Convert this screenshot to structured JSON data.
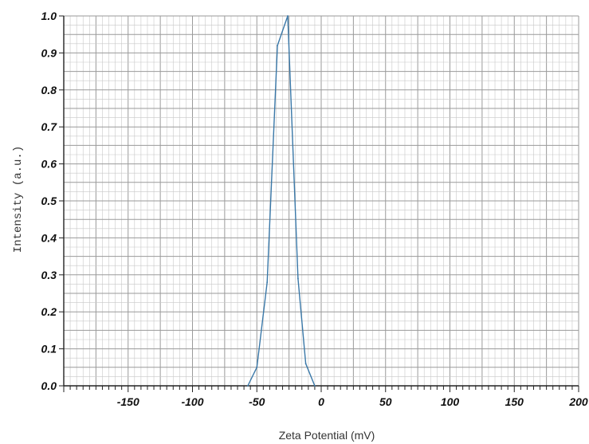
{
  "chart_data": {
    "type": "line",
    "title": "",
    "xlabel": "Zeta Potential (mV)",
    "ylabel": "Intensity (a.u.)",
    "xlim": [
      -200,
      200
    ],
    "ylim": [
      0,
      1.0
    ],
    "grid": true,
    "legend": "none",
    "x_ticks": [
      {
        "value": -150,
        "label": "-150"
      },
      {
        "value": -100,
        "label": "-100"
      },
      {
        "value": -50,
        "label": "-50"
      },
      {
        "value": 0,
        "label": "0"
      },
      {
        "value": 50,
        "label": "50"
      },
      {
        "value": 100,
        "label": "100"
      },
      {
        "value": 150,
        "label": "150"
      },
      {
        "value": 200,
        "label": "200"
      }
    ],
    "y_ticks": [
      {
        "value": 0.0,
        "label": "0.0"
      },
      {
        "value": 0.1,
        "label": "0.1"
      },
      {
        "value": 0.2,
        "label": "0.2"
      },
      {
        "value": 0.3,
        "label": "0.3"
      },
      {
        "value": 0.4,
        "label": "0.4"
      },
      {
        "value": 0.5,
        "label": "0.5"
      },
      {
        "value": 0.6,
        "label": "0.6"
      },
      {
        "value": 0.7,
        "label": "0.7"
      },
      {
        "value": 0.8,
        "label": "0.8"
      },
      {
        "value": 0.9,
        "label": "0.9"
      },
      {
        "value": 1.0,
        "label": "1.0"
      }
    ],
    "series": [
      {
        "color": "#3a78a8",
        "x": [
          -57,
          -50,
          -42,
          -34,
          -26,
          -18,
          -12,
          -5
        ],
        "y": [
          0.0,
          0.05,
          0.28,
          0.92,
          1.0,
          0.29,
          0.06,
          0.0
        ]
      }
    ],
    "colors": {
      "major_grid": "#9a9a9a",
      "minor_grid": "#c8c8c8",
      "axis": "#222222"
    }
  }
}
